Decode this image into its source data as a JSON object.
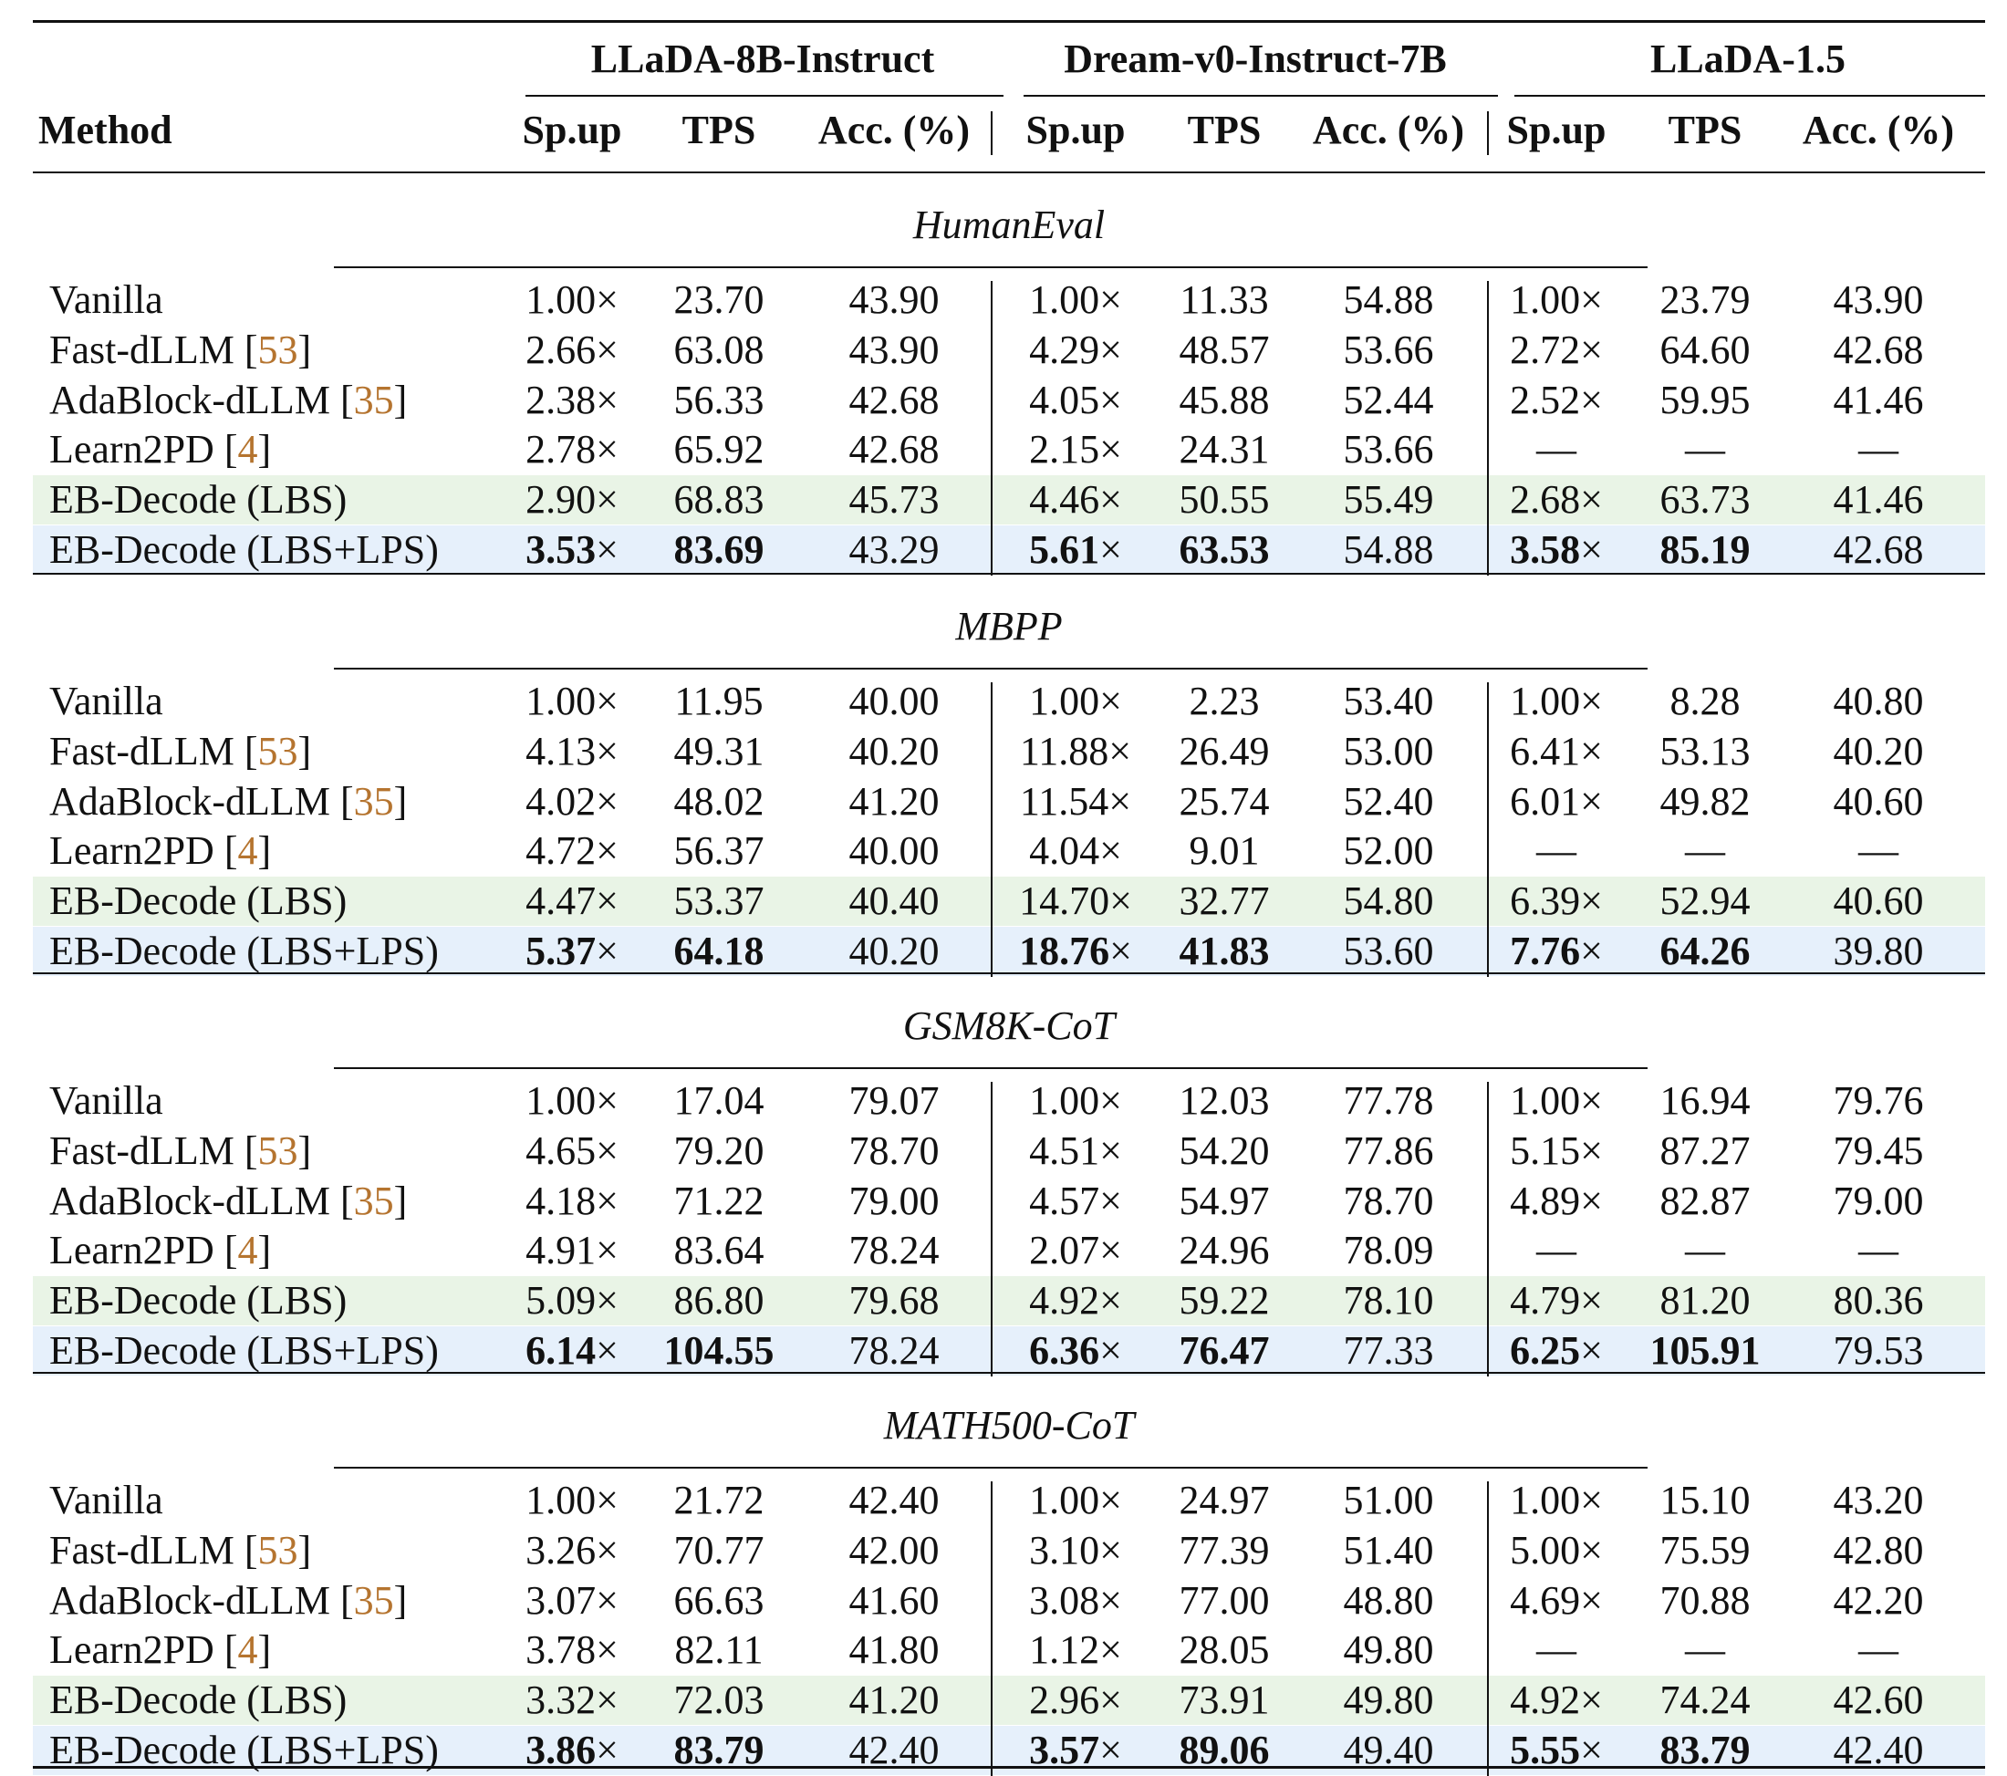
{
  "models": [
    "LLaDA-8B-Instruct",
    "Dream-v0-Instruct-7B",
    "LLaDA-1.5"
  ],
  "header": {
    "method": "Method",
    "cols": [
      "Sp.up",
      "TPS",
      "Acc. (%)"
    ]
  },
  "sections": [
    {
      "title": "HumanEval",
      "rows": [
        {
          "method": "Vanilla",
          "ref": "",
          "type": "normal",
          "values": [
            "1.00×",
            "23.70",
            "43.90",
            "1.00×",
            "11.33",
            "54.88",
            "1.00×",
            "23.79",
            "43.90"
          ]
        },
        {
          "method": "Fast-dLLM",
          "ref": "53",
          "type": "normal",
          "values": [
            "2.66×",
            "63.08",
            "43.90",
            "4.29×",
            "48.57",
            "53.66",
            "2.72×",
            "64.60",
            "42.68"
          ]
        },
        {
          "method": "AdaBlock-dLLM",
          "ref": "35",
          "type": "normal",
          "values": [
            "2.38×",
            "56.33",
            "42.68",
            "4.05×",
            "45.88",
            "52.44",
            "2.52×",
            "59.95",
            "41.46"
          ]
        },
        {
          "method": "Learn2PD",
          "ref": "4",
          "type": "normal",
          "values": [
            "2.78×",
            "65.92",
            "42.68",
            "2.15×",
            "24.31",
            "53.66",
            "—",
            "—",
            "—"
          ]
        },
        {
          "method": "EB-Decode (LBS)",
          "ref": "",
          "type": "lbs",
          "values": [
            "2.90×",
            "68.83",
            "45.73",
            "4.46×",
            "50.55",
            "55.49",
            "2.68×",
            "63.73",
            "41.46"
          ]
        },
        {
          "method": "EB-Decode (LBS+LPS)",
          "ref": "",
          "type": "lps",
          "values": [
            "3.53×",
            "83.69",
            "43.29",
            "5.61×",
            "63.53",
            "54.88",
            "3.58×",
            "85.19",
            "42.68"
          ]
        }
      ]
    },
    {
      "title": "MBPP",
      "rows": [
        {
          "method": "Vanilla",
          "ref": "",
          "type": "normal",
          "values": [
            "1.00×",
            "11.95",
            "40.00",
            "1.00×",
            "2.23",
            "53.40",
            "1.00×",
            "8.28",
            "40.80"
          ]
        },
        {
          "method": "Fast-dLLM",
          "ref": "53",
          "type": "normal",
          "values": [
            "4.13×",
            "49.31",
            "40.20",
            "11.88×",
            "26.49",
            "53.00",
            "6.41×",
            "53.13",
            "40.20"
          ]
        },
        {
          "method": "AdaBlock-dLLM",
          "ref": "35",
          "type": "normal",
          "values": [
            "4.02×",
            "48.02",
            "41.20",
            "11.54×",
            "25.74",
            "52.40",
            "6.01×",
            "49.82",
            "40.60"
          ]
        },
        {
          "method": "Learn2PD",
          "ref": "4",
          "type": "normal",
          "values": [
            "4.72×",
            "56.37",
            "40.00",
            "4.04×",
            "9.01",
            "52.00",
            "—",
            "—",
            "—"
          ]
        },
        {
          "method": "EB-Decode (LBS)",
          "ref": "",
          "type": "lbs",
          "values": [
            "4.47×",
            "53.37",
            "40.40",
            "14.70×",
            "32.77",
            "54.80",
            "6.39×",
            "52.94",
            "40.60"
          ]
        },
        {
          "method": "EB-Decode (LBS+LPS)",
          "ref": "",
          "type": "lps",
          "values": [
            "5.37×",
            "64.18",
            "40.20",
            "18.76×",
            "41.83",
            "53.60",
            "7.76×",
            "64.26",
            "39.80"
          ]
        }
      ]
    },
    {
      "title": "GSM8K-CoT",
      "rows": [
        {
          "method": "Vanilla",
          "ref": "",
          "type": "normal",
          "values": [
            "1.00×",
            "17.04",
            "79.07",
            "1.00×",
            "12.03",
            "77.78",
            "1.00×",
            "16.94",
            "79.76"
          ]
        },
        {
          "method": "Fast-dLLM",
          "ref": "53",
          "type": "normal",
          "values": [
            "4.65×",
            "79.20",
            "78.70",
            "4.51×",
            "54.20",
            "77.86",
            "5.15×",
            "87.27",
            "79.45"
          ]
        },
        {
          "method": "AdaBlock-dLLM",
          "ref": "35",
          "type": "normal",
          "values": [
            "4.18×",
            "71.22",
            "79.00",
            "4.57×",
            "54.97",
            "78.70",
            "4.89×",
            "82.87",
            "79.00"
          ]
        },
        {
          "method": "Learn2PD",
          "ref": "4",
          "type": "normal",
          "values": [
            "4.91×",
            "83.64",
            "78.24",
            "2.07×",
            "24.96",
            "78.09",
            "—",
            "—",
            "—"
          ]
        },
        {
          "method": "EB-Decode (LBS)",
          "ref": "",
          "type": "lbs",
          "values": [
            "5.09×",
            "86.80",
            "79.68",
            "4.92×",
            "59.22",
            "78.10",
            "4.79×",
            "81.20",
            "80.36"
          ]
        },
        {
          "method": "EB-Decode (LBS+LPS)",
          "ref": "",
          "type": "lps",
          "values": [
            "6.14×",
            "104.55",
            "78.24",
            "6.36×",
            "76.47",
            "77.33",
            "6.25×",
            "105.91",
            "79.53"
          ]
        }
      ]
    },
    {
      "title": "MATH500-CoT",
      "rows": [
        {
          "method": "Vanilla",
          "ref": "",
          "type": "normal",
          "values": [
            "1.00×",
            "21.72",
            "42.40",
            "1.00×",
            "24.97",
            "51.00",
            "1.00×",
            "15.10",
            "43.20"
          ]
        },
        {
          "method": "Fast-dLLM",
          "ref": "53",
          "type": "normal",
          "values": [
            "3.26×",
            "70.77",
            "42.00",
            "3.10×",
            "77.39",
            "51.40",
            "5.00×",
            "75.59",
            "42.80"
          ]
        },
        {
          "method": "AdaBlock-dLLM",
          "ref": "35",
          "type": "normal",
          "values": [
            "3.07×",
            "66.63",
            "41.60",
            "3.08×",
            "77.00",
            "48.80",
            "4.69×",
            "70.88",
            "42.20"
          ]
        },
        {
          "method": "Learn2PD",
          "ref": "4",
          "type": "normal",
          "values": [
            "3.78×",
            "82.11",
            "41.80",
            "1.12×",
            "28.05",
            "49.80",
            "—",
            "—",
            "—"
          ]
        },
        {
          "method": "EB-Decode (LBS)",
          "ref": "",
          "type": "lbs",
          "values": [
            "3.32×",
            "72.03",
            "41.20",
            "2.96×",
            "73.91",
            "49.80",
            "4.92×",
            "74.24",
            "42.60"
          ]
        },
        {
          "method": "EB-Decode (LBS+LPS)",
          "ref": "",
          "type": "lps",
          "values": [
            "3.86×",
            "83.79",
            "42.40",
            "3.57×",
            "89.06",
            "49.40",
            "5.55×",
            "83.79",
            "42.40"
          ]
        }
      ]
    }
  ]
}
